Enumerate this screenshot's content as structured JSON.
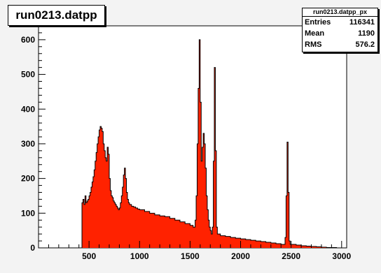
{
  "chart_data": {
    "type": "histogram",
    "title": "run0213.datpp",
    "stats": {
      "name": "run0213.datpp_px",
      "rows": [
        {
          "label": "Entries",
          "value": "116341"
        },
        {
          "label": "Mean",
          "value": "1190"
        },
        {
          "label": "RMS",
          "value": "576.2"
        }
      ]
    },
    "xlim": [
      0,
      3050
    ],
    "ylim": [
      0,
      640
    ],
    "x_ticks": [
      500,
      1000,
      1500,
      2000,
      2500,
      3000
    ],
    "y_ticks": [
      0,
      100,
      200,
      300,
      400,
      500,
      600
    ],
    "fill_color": "#ff2200",
    "line_color": "#000000",
    "bins": [
      [
        420,
        0
      ],
      [
        430,
        130
      ],
      [
        440,
        140
      ],
      [
        450,
        125
      ],
      [
        460,
        150
      ],
      [
        470,
        130
      ],
      [
        480,
        135
      ],
      [
        490,
        140
      ],
      [
        500,
        150
      ],
      [
        510,
        160
      ],
      [
        520,
        175
      ],
      [
        530,
        190
      ],
      [
        540,
        205
      ],
      [
        550,
        225
      ],
      [
        560,
        250
      ],
      [
        570,
        275
      ],
      [
        580,
        300
      ],
      [
        590,
        320
      ],
      [
        600,
        340
      ],
      [
        610,
        350
      ],
      [
        620,
        345
      ],
      [
        630,
        335
      ],
      [
        640,
        300
      ],
      [
        650,
        280
      ],
      [
        660,
        260
      ],
      [
        670,
        250
      ],
      [
        680,
        290
      ],
      [
        690,
        270
      ],
      [
        700,
        200
      ],
      [
        710,
        165
      ],
      [
        720,
        150
      ],
      [
        730,
        145
      ],
      [
        740,
        135
      ],
      [
        750,
        130
      ],
      [
        760,
        125
      ],
      [
        770,
        120
      ],
      [
        780,
        115
      ],
      [
        790,
        110
      ],
      [
        800,
        115
      ],
      [
        810,
        130
      ],
      [
        820,
        150
      ],
      [
        830,
        175
      ],
      [
        840,
        210
      ],
      [
        850,
        230
      ],
      [
        860,
        200
      ],
      [
        870,
        160
      ],
      [
        880,
        140
      ],
      [
        890,
        130
      ],
      [
        900,
        125
      ],
      [
        920,
        120
      ],
      [
        940,
        118
      ],
      [
        960,
        115
      ],
      [
        980,
        112
      ],
      [
        1000,
        110
      ],
      [
        1050,
        105
      ],
      [
        1100,
        100
      ],
      [
        1150,
        95
      ],
      [
        1200,
        92
      ],
      [
        1250,
        90
      ],
      [
        1300,
        85
      ],
      [
        1350,
        80
      ],
      [
        1400,
        75
      ],
      [
        1450,
        70
      ],
      [
        1500,
        65
      ],
      [
        1530,
        60
      ],
      [
        1550,
        80
      ],
      [
        1560,
        150
      ],
      [
        1570,
        300
      ],
      [
        1580,
        460
      ],
      [
        1590,
        600
      ],
      [
        1600,
        420
      ],
      [
        1610,
        250
      ],
      [
        1620,
        290
      ],
      [
        1630,
        330
      ],
      [
        1640,
        300
      ],
      [
        1650,
        230
      ],
      [
        1660,
        150
      ],
      [
        1670,
        110
      ],
      [
        1680,
        80
      ],
      [
        1690,
        60
      ],
      [
        1700,
        50
      ],
      [
        1710,
        40
      ],
      [
        1720,
        60
      ],
      [
        1730,
        250
      ],
      [
        1740,
        520
      ],
      [
        1750,
        280
      ],
      [
        1760,
        60
      ],
      [
        1770,
        40
      ],
      [
        1800,
        35
      ],
      [
        1850,
        33
      ],
      [
        1900,
        30
      ],
      [
        1950,
        28
      ],
      [
        2000,
        26
      ],
      [
        2050,
        24
      ],
      [
        2100,
        22
      ],
      [
        2150,
        20
      ],
      [
        2200,
        18
      ],
      [
        2250,
        16
      ],
      [
        2300,
        14
      ],
      [
        2350,
        12
      ],
      [
        2400,
        10
      ],
      [
        2430,
        10
      ],
      [
        2440,
        30
      ],
      [
        2450,
        150
      ],
      [
        2460,
        305
      ],
      [
        2470,
        160
      ],
      [
        2480,
        20
      ],
      [
        2490,
        10
      ],
      [
        2550,
        8
      ],
      [
        2600,
        6
      ],
      [
        2650,
        5
      ],
      [
        2700,
        4
      ],
      [
        2750,
        3
      ],
      [
        2800,
        2
      ],
      [
        2850,
        1
      ],
      [
        2900,
        1
      ],
      [
        2950,
        0
      ],
      [
        3000,
        0
      ]
    ]
  }
}
